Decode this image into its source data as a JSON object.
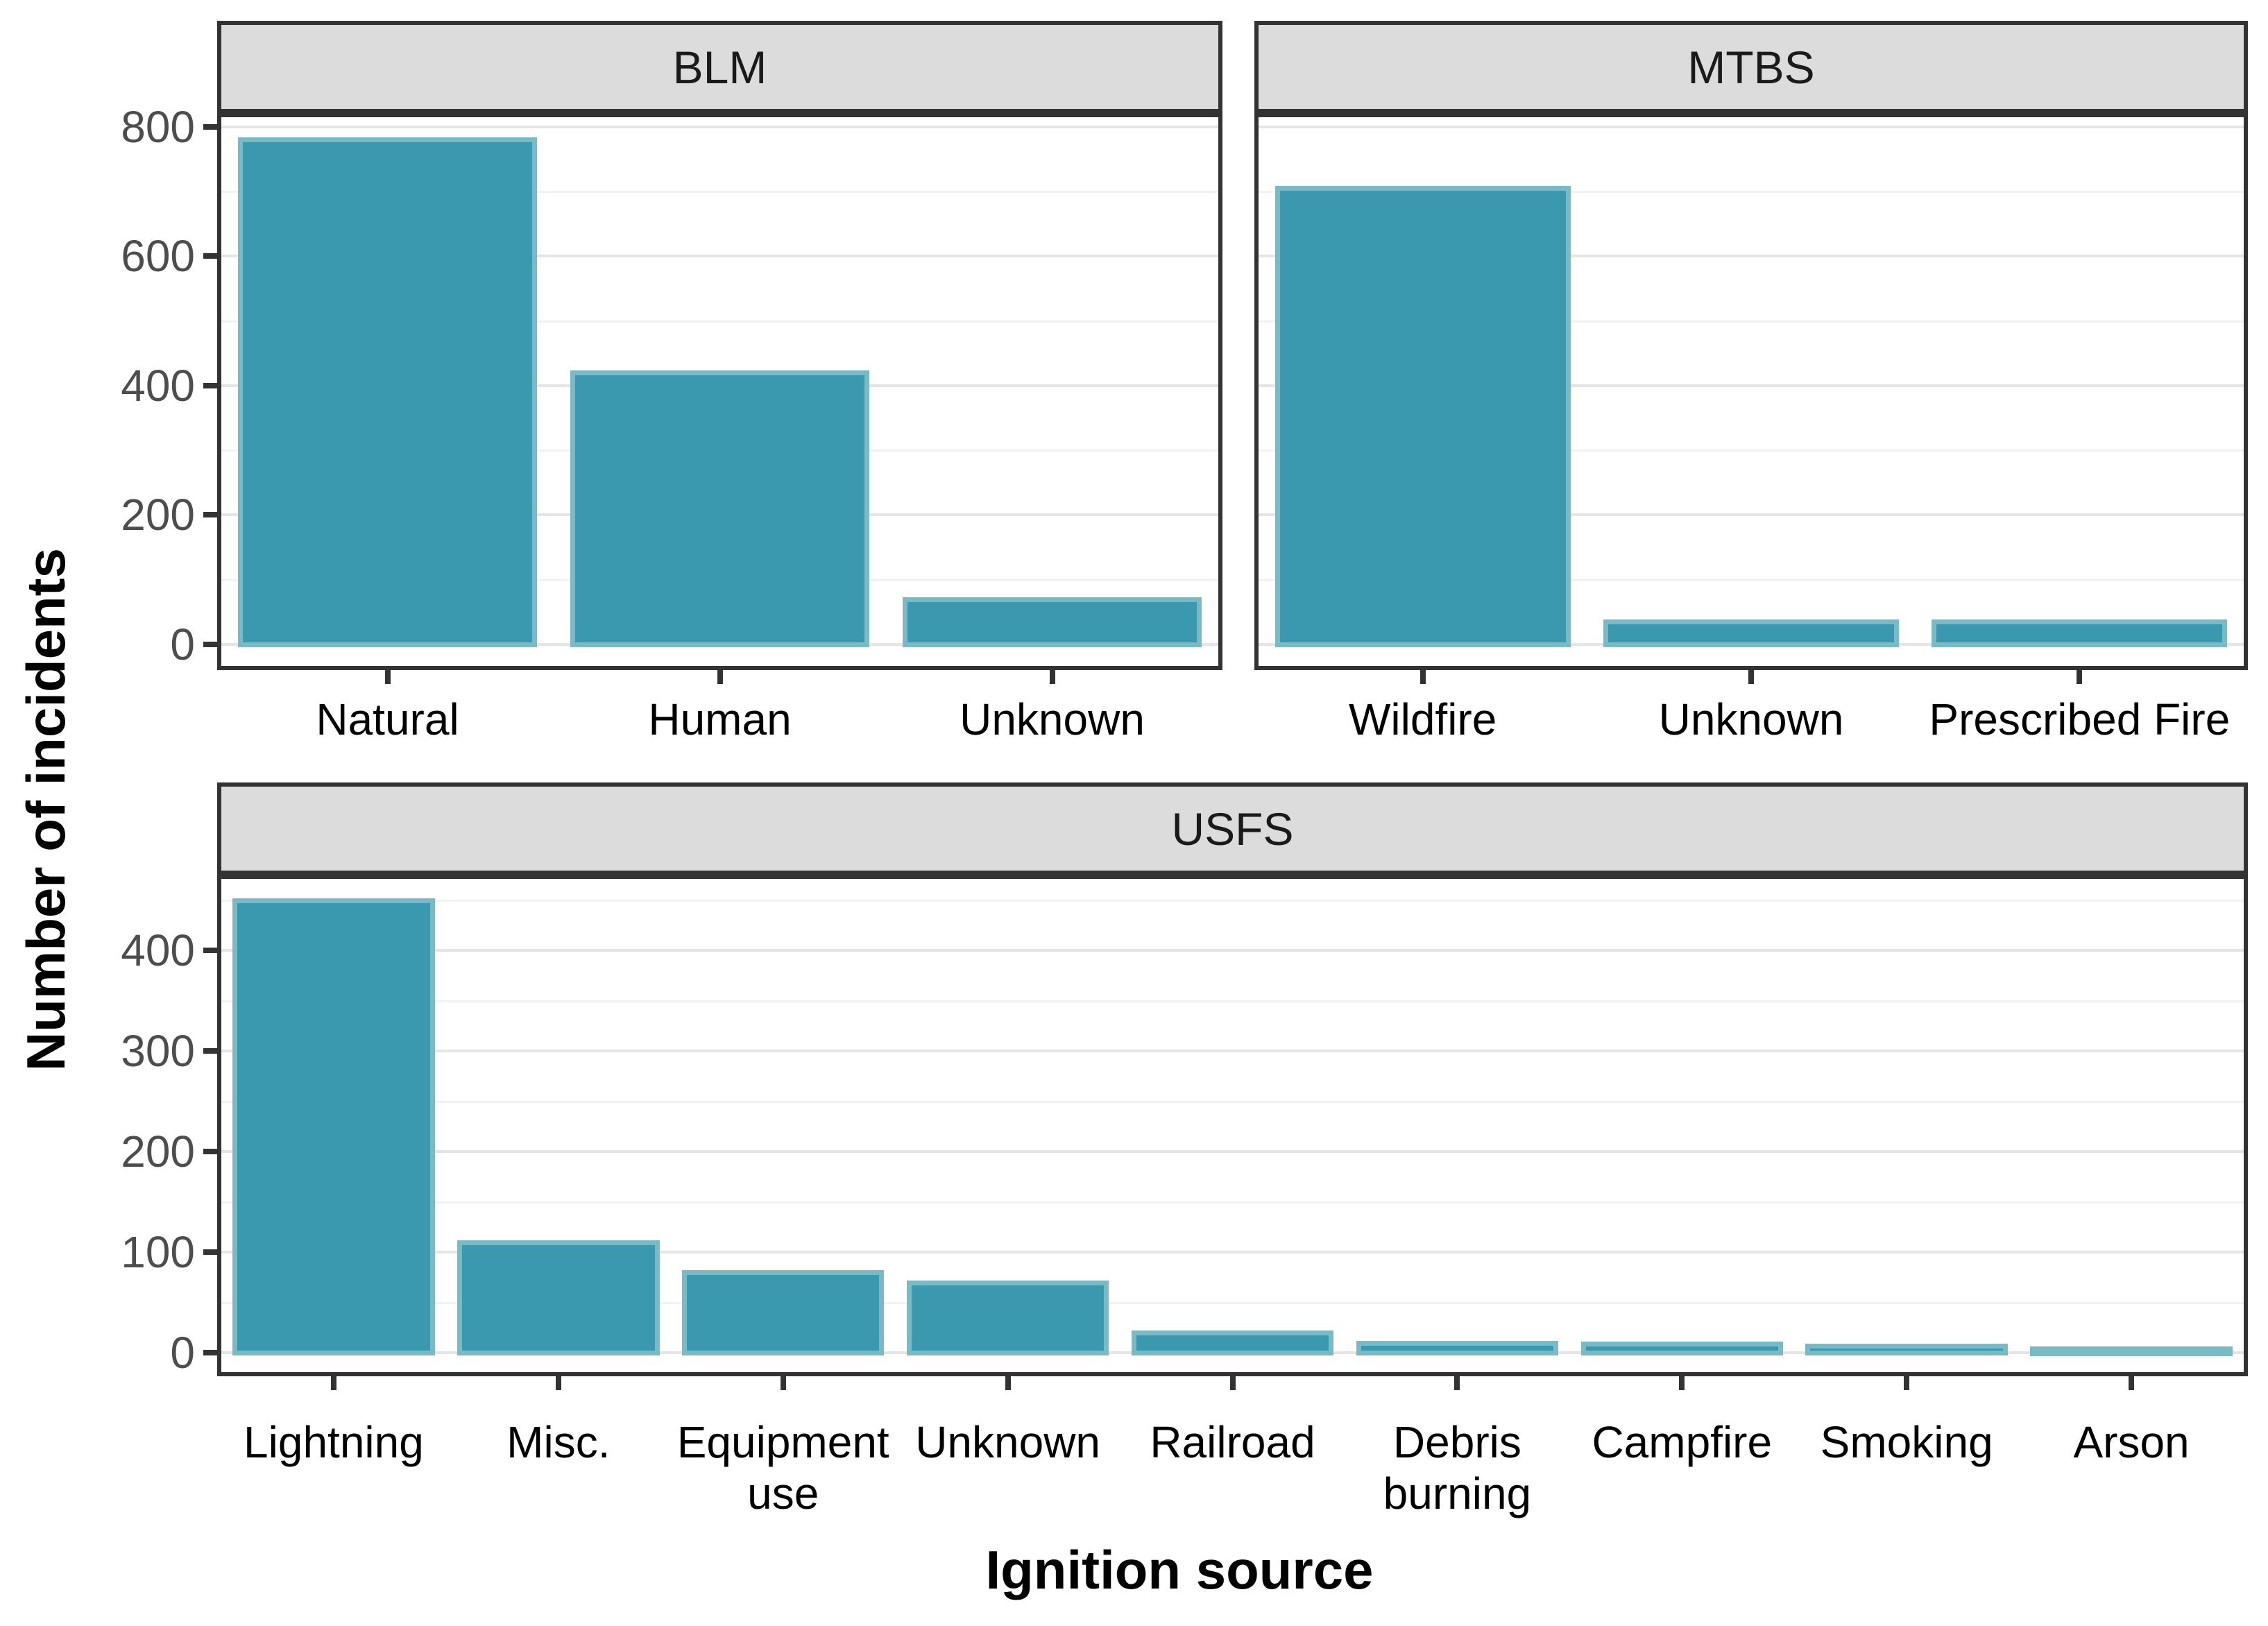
{
  "figure": {
    "y_axis_title": "Number of incidents",
    "x_axis_title": "Ignition source"
  },
  "colors": {
    "bar_fill": "#3A99AE",
    "bar_stroke": "#7ABAC6",
    "strip_background": "#DCDCDC",
    "panel_border": "#333333",
    "grid_major": "#E5E5E5",
    "grid_minor": "#F2F2F2",
    "y_tick_text": "#4D4D4D",
    "x_tick_text": "#000000",
    "strip_text": "#1A1A1A"
  },
  "chart_data": [
    {
      "type": "bar",
      "facet": "BLM",
      "categories": [
        "Natural",
        "Human",
        "Unknown"
      ],
      "values": [
        780,
        420,
        70
      ],
      "title": "BLM",
      "xlabel": "Ignition source",
      "ylabel": "Number of incidents",
      "ylim": [
        0,
        820
      ],
      "yticks": [
        0,
        200,
        400,
        600,
        800
      ],
      "yticks_minor": [
        100,
        300,
        500,
        700
      ],
      "grid": "horizontal",
      "legend": "none"
    },
    {
      "type": "bar",
      "facet": "MTBS",
      "categories": [
        "Wildfire",
        "Unknown",
        "Prescribed Fire"
      ],
      "values": [
        705,
        35,
        35
      ],
      "title": "MTBS",
      "xlabel": "Ignition source",
      "ylabel": "Number of incidents",
      "ylim": [
        0,
        820
      ],
      "yticks": [
        0,
        200,
        400,
        600,
        800
      ],
      "yticks_minor": [
        100,
        300,
        500,
        700
      ],
      "grid": "horizontal",
      "legend": "none"
    },
    {
      "type": "bar",
      "facet": "USFS",
      "categories": [
        "Lightning",
        "Misc.",
        "Equipment\nuse",
        "Unknown",
        "Railroad",
        "Debris\nburning",
        "Campfire",
        "Smoking",
        "Arson"
      ],
      "values": [
        450,
        110,
        80,
        70,
        20,
        10,
        9,
        7,
        4
      ],
      "title": "USFS",
      "xlabel": "Ignition source",
      "ylabel": "Number of incidents",
      "ylim": [
        0,
        472
      ],
      "yticks": [
        0,
        100,
        200,
        300,
        400
      ],
      "yticks_minor": [
        50,
        150,
        250,
        350,
        450
      ],
      "grid": "horizontal",
      "legend": "none"
    }
  ]
}
